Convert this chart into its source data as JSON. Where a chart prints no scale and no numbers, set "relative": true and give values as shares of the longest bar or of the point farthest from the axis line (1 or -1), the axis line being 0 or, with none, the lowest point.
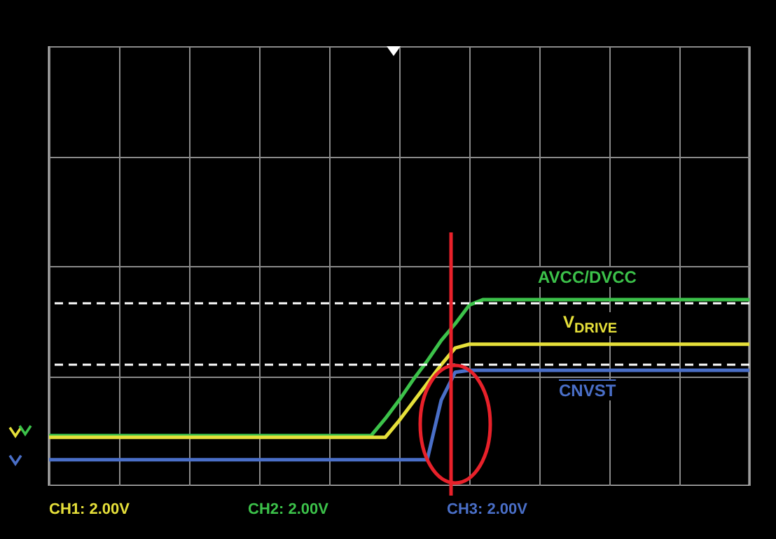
{
  "chart_data": {
    "type": "line",
    "relative": true,
    "grid": true,
    "legend": false,
    "marker": "none",
    "line_style": "solid",
    "categories": [
      null,
      null,
      null,
      null,
      null,
      null,
      null,
      null,
      null,
      null,
      null,
      null,
      null,
      null,
      null,
      null,
      null,
      null,
      null,
      null,
      null,
      null,
      null,
      null,
      null,
      null,
      null,
      null,
      null,
      null,
      null,
      null,
      null,
      null,
      null,
      null,
      null,
      null,
      null,
      null,
      null,
      null,
      null,
      null,
      null,
      null,
      null,
      null,
      null,
      null,
      null
    ],
    "series": [
      {
        "name": "AVCC/DVCC",
        "color": "#3cc24a",
        "values": [
          0.27,
          0.27,
          0.27,
          0.27,
          0.27,
          0.27,
          0.27,
          0.27,
          0.27,
          0.27,
          0.27,
          0.27,
          0.27,
          0.27,
          0.27,
          0.27,
          0.27,
          0.27,
          0.27,
          0.27,
          0.27,
          0.27,
          0.27,
          0.27,
          0.36,
          0.46,
          0.57,
          0.67,
          0.78,
          0.87,
          0.97,
          1,
          1,
          1,
          1,
          1,
          1,
          1,
          1,
          1,
          1,
          1,
          1,
          1,
          1,
          1,
          1,
          1,
          1,
          1,
          1
        ]
      },
      {
        "name": "V$_{DRIVE}$",
        "color": "#e6e03a",
        "values": [
          0.26,
          0.26,
          0.26,
          0.26,
          0.26,
          0.26,
          0.26,
          0.26,
          0.26,
          0.26,
          0.26,
          0.26,
          0.26,
          0.26,
          0.26,
          0.26,
          0.26,
          0.26,
          0.26,
          0.26,
          0.26,
          0.26,
          0.26,
          0.26,
          0.26,
          0.35,
          0.45,
          0.55,
          0.65,
          0.74,
          0.76,
          0.76,
          0.76,
          0.76,
          0.76,
          0.76,
          0.76,
          0.76,
          0.76,
          0.76,
          0.76,
          0.76,
          0.76,
          0.76,
          0.76,
          0.76,
          0.76,
          0.76,
          0.76,
          0.76,
          0.76
        ]
      },
      {
        "name": "CNVST",
        "color": "#4a6fc8",
        "values": [
          0.14,
          0.14,
          0.14,
          0.14,
          0.14,
          0.14,
          0.14,
          0.14,
          0.14,
          0.14,
          0.14,
          0.14,
          0.14,
          0.14,
          0.14,
          0.14,
          0.14,
          0.14,
          0.14,
          0.14,
          0.14,
          0.14,
          0.14,
          0.14,
          0.14,
          0.14,
          0.14,
          0.14,
          0.46,
          0.61,
          0.62,
          0.62,
          0.62,
          0.62,
          0.62,
          0.62,
          0.62,
          0.62,
          0.62,
          0.62,
          0.62,
          0.62,
          0.62,
          0.62,
          0.62,
          0.62,
          0.62,
          0.62,
          0.62,
          0.62,
          0.62
        ]
      }
    ],
    "ref_lines": [
      {
        "axis": "y",
        "value": 0.98,
        "color": "#ffffff",
        "line_style": "dashed"
      },
      {
        "axis": "y",
        "value": 0.65,
        "color": "#ffffff",
        "line_style": "dashed"
      }
    ],
    "annotations": [
      "CH1: 2.00V",
      "CH2: 2.00V",
      "CH3: 2.00V"
    ]
  }
}
